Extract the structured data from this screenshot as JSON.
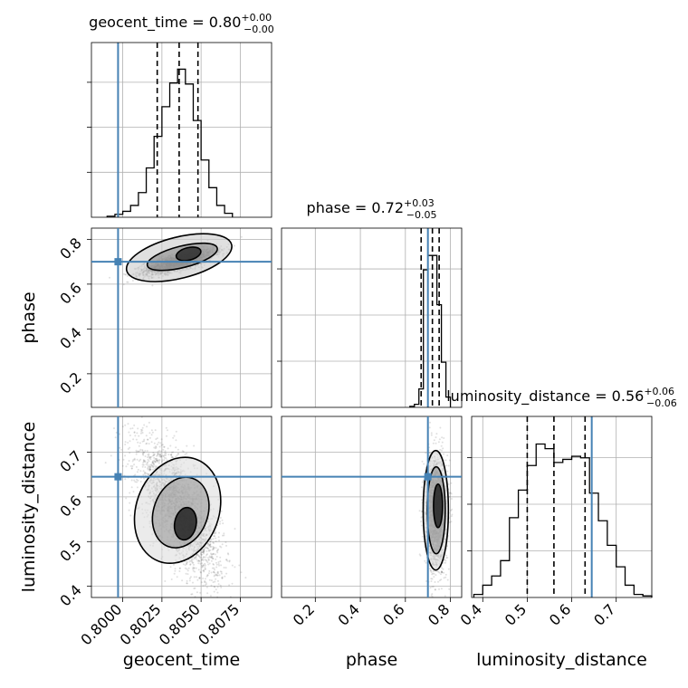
{
  "colors": {
    "truth": "#4682b4",
    "hist": "#000000",
    "contour": "#000000",
    "points": "#555555",
    "grid": "#b0b0b0"
  },
  "chart_data": {
    "type": "corner",
    "parameters": [
      "geocent_time",
      "phase",
      "luminosity_distance"
    ],
    "truths": {
      "geocent_time": 0.7997,
      "phase": 0.7,
      "luminosity_distance": 0.645
    },
    "ranges": {
      "geocent_time": [
        0.798,
        0.8095
      ],
      "phase": [
        0.05,
        0.85
      ],
      "luminosity_distance": [
        0.375,
        0.78
      ]
    },
    "ticks": {
      "geocent_time": [
        "0.8000",
        "0.8025",
        "0.8050",
        "0.8075"
      ],
      "phase": [
        "0.2",
        "0.4",
        "0.6",
        "0.8"
      ],
      "luminosity_distance": [
        "0.4",
        "0.5",
        "0.6",
        "0.7"
      ]
    },
    "titles": [
      {
        "name": "geocent_time",
        "median": "0.80",
        "plus": "+0.00",
        "minus": "−0.00"
      },
      {
        "name": "phase",
        "median": "0.72",
        "plus": "+0.03",
        "minus": "−0.05"
      },
      {
        "name": "luminosity_distance",
        "median": "0.56",
        "plus": "+0.06",
        "minus": "−0.06"
      }
    ],
    "quantiles": {
      "geocent_time": [
        0.8022,
        0.8036,
        0.8048
      ],
      "phase": [
        0.67,
        0.72,
        0.75
      ],
      "luminosity_distance": [
        0.5,
        0.56,
        0.63
      ]
    },
    "histograms": {
      "geocent_time": {
        "edges": [
          0.799,
          0.7995,
          0.8,
          0.8005,
          0.801,
          0.8015,
          0.802,
          0.8025,
          0.803,
          0.8035,
          0.804,
          0.8045,
          0.805,
          0.8055,
          0.806,
          0.8065,
          0.807
        ],
        "counts": [
          1,
          3,
          6,
          12,
          25,
          50,
          82,
          112,
          136,
          150,
          135,
          98,
          58,
          30,
          12,
          4
        ]
      },
      "phase": {
        "edges": [
          0.62,
          0.64,
          0.66,
          0.68,
          0.7,
          0.72,
          0.74,
          0.76,
          0.78,
          0.8
        ],
        "counts": [
          1,
          3,
          18,
          134,
          148,
          148,
          100,
          44,
          10
        ]
      },
      "luminosity_distance": {
        "edges": [
          0.38,
          0.4,
          0.42,
          0.44,
          0.46,
          0.48,
          0.5,
          0.52,
          0.54,
          0.56,
          0.58,
          0.6,
          0.62,
          0.64,
          0.66,
          0.68,
          0.7,
          0.72,
          0.74,
          0.76,
          0.78
        ],
        "counts": [
          2,
          8,
          14,
          24,
          52,
          70,
          86,
          100,
          97,
          88,
          90,
          92,
          91,
          68,
          50,
          34,
          20,
          8,
          2,
          1
        ]
      }
    }
  }
}
